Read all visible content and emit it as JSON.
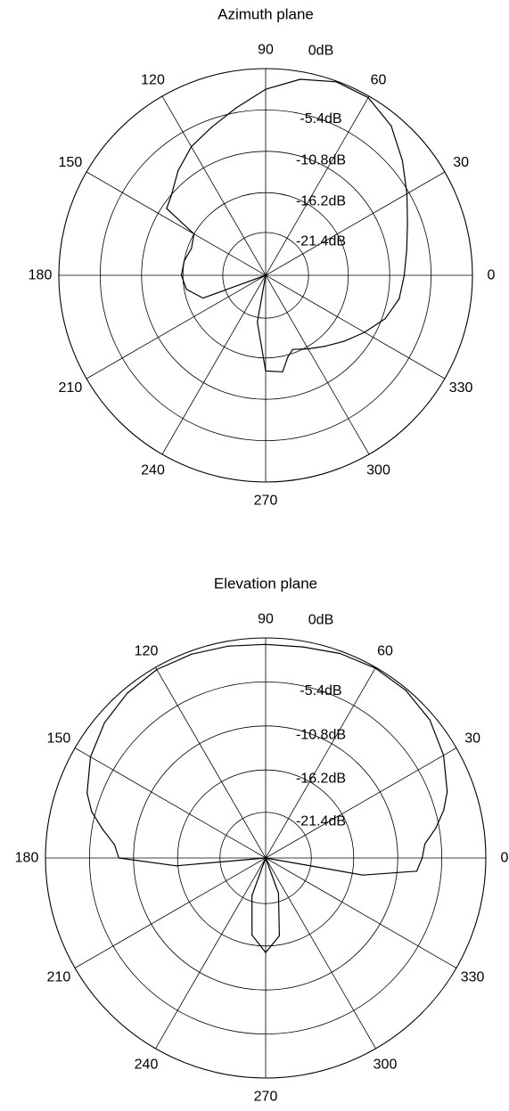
{
  "chart_data": [
    {
      "type": "polar",
      "title": "Azimuth plane",
      "radial_unit": "dB",
      "radial_rings_db": [
        0,
        -5.4,
        -10.8,
        -16.2,
        -21.4,
        -27
      ],
      "ring_labels": [
        "0dB",
        "-5.4dB",
        "-10.8dB",
        "-16.2dB",
        "-21.4dB"
      ],
      "angle_ticks": [
        "0",
        "30",
        "60",
        "90",
        "120",
        "150",
        "180",
        "210",
        "240",
        "270",
        "300",
        "330"
      ],
      "series": [
        {
          "angles": [
            0,
            10,
            20,
            30,
            40,
            50,
            60,
            70,
            80,
            90,
            100,
            110,
            120,
            130,
            140,
            146,
            150,
            160,
            170,
            180,
            190,
            200,
            210,
            220,
            230,
            240,
            250,
            255,
            260,
            270,
            280,
            285,
            290,
            300,
            310,
            320,
            330,
            340,
            350
          ],
          "gain_db": [
            -8.9,
            -8.3,
            -7.3,
            -5.7,
            -3.7,
            -1.5,
            -0.2,
            -0.1,
            -1.0,
            -2.7,
            -4.8,
            -6.4,
            -7.6,
            -9.2,
            -10.9,
            -11.4,
            -16.2,
            -16.7,
            -16.2,
            -16.0,
            -16.5,
            -18.3,
            -27,
            -27,
            -27,
            -27,
            -27,
            -27,
            -20.8,
            -14.5,
            -14.2,
            -15.9,
            -16.7,
            -15.9,
            -14.9,
            -13.6,
            -12.1,
            -10.4,
            -9.3
          ]
        }
      ]
    },
    {
      "type": "polar",
      "title": "Elevation plane",
      "radial_unit": "dB",
      "radial_rings_db": [
        0,
        -5.4,
        -10.8,
        -16.2,
        -21.4,
        -27
      ],
      "ring_labels": [
        "0dB",
        "-5.4dB",
        "-10.8dB",
        "-16.2dB",
        "-21.4dB"
      ],
      "angle_ticks": [
        "0",
        "30",
        "60",
        "90",
        "120",
        "150",
        "180",
        "210",
        "240",
        "270",
        "300",
        "330"
      ],
      "series": [
        {
          "angles": [
            0,
            5,
            10,
            15,
            20,
            30,
            40,
            50,
            60,
            70,
            80,
            90,
            100,
            110,
            120,
            130,
            140,
            150,
            160,
            165,
            170,
            175,
            180,
            185,
            190,
            195,
            200,
            210,
            220,
            230,
            240,
            250,
            260,
            270,
            280,
            290,
            300,
            310,
            320,
            330,
            340,
            345,
            350,
            355
          ],
          "gain_db": [
            -7.8,
            -7.4,
            -5.8,
            -4.4,
            -3.3,
            -1.8,
            -0.7,
            -0.2,
            -0.1,
            -0.3,
            -0.7,
            -0.8,
            -0.6,
            -0.4,
            -0.3,
            -0.6,
            -1.2,
            -2.2,
            -3.7,
            -4.9,
            -6.7,
            -8.4,
            -9.0,
            -16.0,
            -27,
            -27,
            -27,
            -27,
            -27,
            -27,
            -27,
            -22.1,
            -17.4,
            -15.4,
            -17.3,
            -22.4,
            -27,
            -27,
            -27,
            -27,
            -27,
            -27,
            -14.9,
            -8.4
          ]
        }
      ]
    }
  ]
}
